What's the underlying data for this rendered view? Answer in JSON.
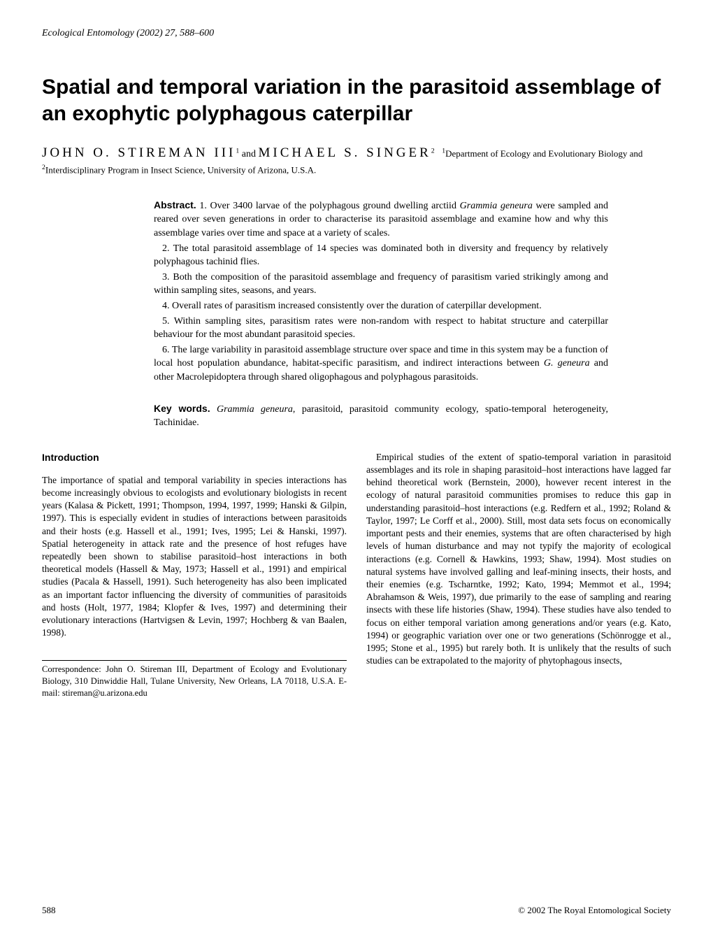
{
  "journal_header": "Ecological Entomology (2002) 27, 588–600",
  "title": "Spatial and temporal variation in the parasitoid assemblage of an exophytic polyphagous caterpillar",
  "authors": {
    "author1": "JOHN O. STIREMAN III",
    "author1_sup": "1",
    "and": " and ",
    "author2": "MICHAEL S. SINGER",
    "author2_sup": "2",
    "affil1_sup": "1",
    "affil1": "Department of Ecology and Evolutionary Biology and ",
    "affil2_sup": "2",
    "affil2": "Interdisciplinary Program in Insect Science, University of Arizona, U.S.A."
  },
  "abstract": {
    "label": "Abstract.",
    "p1_prefix": " 1. Over 3400 larvae of the polyphagous ground dwelling arctiid ",
    "p1_species": "Grammia geneura",
    "p1_suffix": " were sampled and reared over seven generations in order to characterise its parasitoid assemblage and examine how and why this assemblage varies over time and space at a variety of scales.",
    "p2": "2. The total parasitoid assemblage of 14 species was dominated both in diversity and frequency by relatively polyphagous tachinid flies.",
    "p3": "3. Both the composition of the parasitoid assemblage and frequency of parasitism varied strikingly among and within sampling sites, seasons, and years.",
    "p4": "4. Overall rates of parasitism increased consistently over the duration of caterpillar development.",
    "p5": "5. Within sampling sites, parasitism rates were non-random with respect to habitat structure and caterpillar behaviour for the most abundant parasitoid species.",
    "p6_prefix": "6. The large variability in parasitoid assemblage structure over space and time in this system may be a function of local host population abundance, habitat-specific parasitism, and indirect interactions between ",
    "p6_species": "G. geneura",
    "p6_suffix": " and other Macrolepidoptera through shared oligophagous and polyphagous parasitoids."
  },
  "keywords": {
    "label": "Key words.",
    "species": " Grammia geneura",
    "rest": ", parasitoid, parasitoid community ecology, spatio-temporal heterogeneity, Tachinidae."
  },
  "intro_heading": "Introduction",
  "intro_left": "The importance of spatial and temporal variability in species interactions has become increasingly obvious to ecologists and evolutionary biologists in recent years (Kalasa & Pickett, 1991; Thompson, 1994, 1997, 1999; Hanski & Gilpin, 1997). This is especially evident in studies of interactions between parasitoids and their hosts (e.g. Hassell et al., 1991; Ives, 1995; Lei & Hanski, 1997). Spatial heterogeneity in attack rate and the presence of host refuges have repeatedly been shown to stabilise parasitoid–host interactions in both theoretical models (Hassell & May, 1973; Hassell et al., 1991) and empirical studies (Pacala & Hassell, 1991). Such heterogeneity has also been implicated as an important factor influencing the diversity of communities of parasitoids and hosts (Holt, 1977, 1984; Klopfer & Ives, 1997) and determining their evolutionary interactions (Hartvigsen & Levin, 1997; Hochberg & van Baalen, 1998).",
  "intro_right": "Empirical studies of the extent of spatio-temporal variation in parasitoid assemblages and its role in shaping parasitoid–host interactions have lagged far behind theoretical work (Bernstein, 2000), however recent interest in the ecology of natural parasitoid communities promises to reduce this gap in understanding parasitoid–host interactions (e.g. Redfern et al., 1992; Roland & Taylor, 1997; Le Corff et al., 2000). Still, most data sets focus on economically important pests and their enemies, systems that are often characterised by high levels of human disturbance and may not typify the majority of ecological interactions (e.g. Cornell & Hawkins, 1993; Shaw, 1994). Most studies on natural systems have involved galling and leaf-mining insects, their hosts, and their enemies (e.g. Tscharntke, 1992; Kato, 1994; Memmot et al., 1994; Abrahamson & Weis, 1997), due primarily to the ease of sampling and rearing insects with these life histories (Shaw, 1994). These studies have also tended to focus on either temporal variation among generations and/or years (e.g. Kato, 1994) or geographic variation over one or two generations (Schönrogge et al., 1995; Stone et al., 1995) but rarely both. It is unlikely that the results of such studies can be extrapolated to the majority of phytophagous insects,",
  "correspondence": "Correspondence: John O. Stireman III, Department of Ecology and Evolutionary Biology, 310 Dinwiddie Hall, Tulane University, New Orleans, LA 70118, U.S.A. E-mail: stireman@u.arizona.edu",
  "footer": {
    "page": "588",
    "copyright": "© 2002 The Royal Entomological Society"
  }
}
